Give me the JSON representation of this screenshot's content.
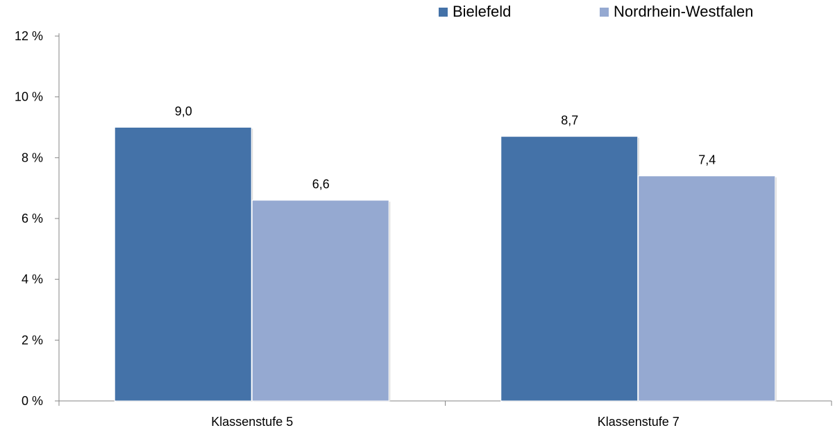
{
  "chart_data": {
    "type": "bar",
    "categories": [
      "Klassenstufe 5",
      "Klassenstufe 7"
    ],
    "series": [
      {
        "name": "Bielefeld",
        "values": [
          9.0,
          8.7
        ],
        "labels": [
          "9,0",
          "8,7"
        ],
        "color": "#4472A8"
      },
      {
        "name": "Nordrhein-Westfalen",
        "values": [
          6.6,
          7.4
        ],
        "labels": [
          "6,6",
          "7,4"
        ],
        "color": "#95A9D1"
      }
    ],
    "yticks": [
      0,
      2,
      4,
      6,
      8,
      10,
      12
    ],
    "ytick_labels": [
      "0 %",
      "2 %",
      "4 %",
      "6 %",
      "8 %",
      "10 %",
      "12 %"
    ],
    "ylim": [
      0,
      12
    ],
    "title": "",
    "xlabel": "",
    "ylabel": "",
    "grid": false,
    "legend_position": "top-right",
    "axis_color": "#868686"
  }
}
